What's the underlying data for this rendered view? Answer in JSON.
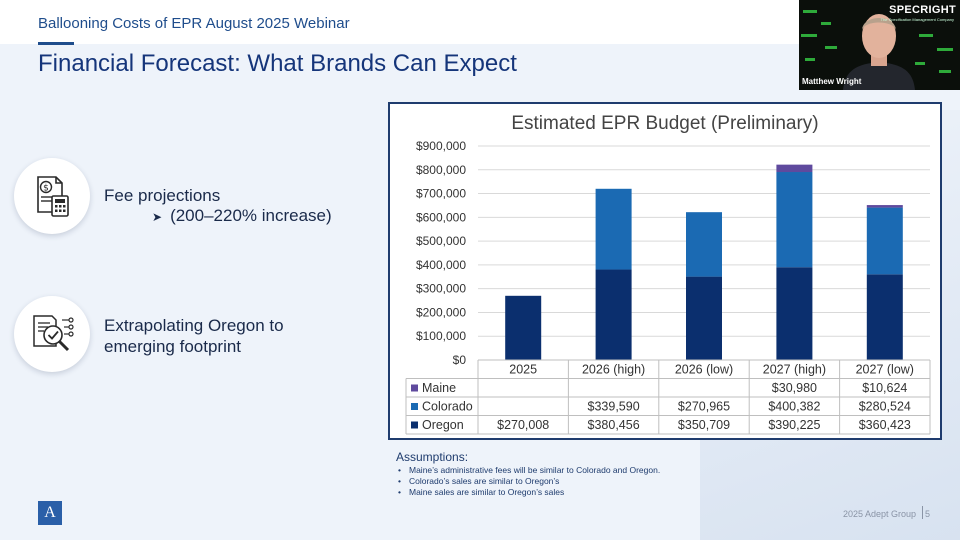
{
  "header": {
    "webinar_title": "Ballooning Costs of EPR August 2025 Webinar",
    "slide_title": "Financial Forecast: What Brands Can Expect"
  },
  "features": [
    {
      "icon": "invoice-calculator-icon",
      "label_prefix": "Fee ",
      "label_emphasis": "projections",
      "sub": "(200–220% increase)"
    },
    {
      "icon": "data-analysis-icon",
      "label_emphasis": "Extrapolating",
      "label_rest": " Oregon to",
      "label_line2": "emerging footprint"
    }
  ],
  "chart_data": {
    "type": "bar",
    "stacked": true,
    "title": "Estimated EPR Budget (Preliminary)",
    "categories": [
      "2025",
      "2026 (high)",
      "2026 (low)",
      "2027 (high)",
      "2027 (low)"
    ],
    "series": [
      {
        "name": "Oregon",
        "color": "#0b2f6e",
        "values": [
          270008,
          380456,
          350709,
          390225,
          360423
        ],
        "labels": [
          "$270,008",
          "$380,456",
          "$350,709",
          "$390,225",
          "$360,423"
        ]
      },
      {
        "name": "Colorado",
        "color": "#1b6ab3",
        "values": [
          0,
          339590,
          270965,
          400382,
          280524
        ],
        "labels": [
          "",
          "$339,590",
          "$270,965",
          "$400,382",
          "$280,524"
        ]
      },
      {
        "name": "Maine",
        "color": "#5f4a9e",
        "values": [
          0,
          0,
          0,
          30980,
          10624
        ],
        "labels": [
          "",
          "",
          "",
          "$30,980",
          "$10,624"
        ]
      }
    ],
    "table_row_order": [
      "Maine",
      "Colorado",
      "Oregon"
    ],
    "ylim": [
      0,
      900000
    ],
    "yticks": [
      0,
      100000,
      200000,
      300000,
      400000,
      500000,
      600000,
      700000,
      800000,
      900000
    ],
    "ytick_labels": [
      "$0",
      "$100,000",
      "$200,000",
      "$300,000",
      "$400,000",
      "$500,000",
      "$600,000",
      "$700,000",
      "$800,000",
      "$900,000"
    ],
    "grid": true,
    "legend": "data-table"
  },
  "assumptions": {
    "title": "Assumptions:",
    "items": [
      "Maine’s administrative fees will be similar to Colorado and Oregon.",
      "Colorado’s sales are similar to Oregon’s",
      "Maine sales are similar to Oregon’s sales"
    ]
  },
  "footer": {
    "logo_letter": "A",
    "company": "2025 Adept Group",
    "page_number": "5"
  },
  "video": {
    "brand": "SPECRIGHT",
    "tagline": "The Specification Management Company",
    "presenter": "Matthew Wright"
  },
  "colors": {
    "accent": "#1f4d8c",
    "oregon": "#0b2f6e",
    "colorado": "#1b6ab3",
    "maine": "#5f4a9e"
  }
}
